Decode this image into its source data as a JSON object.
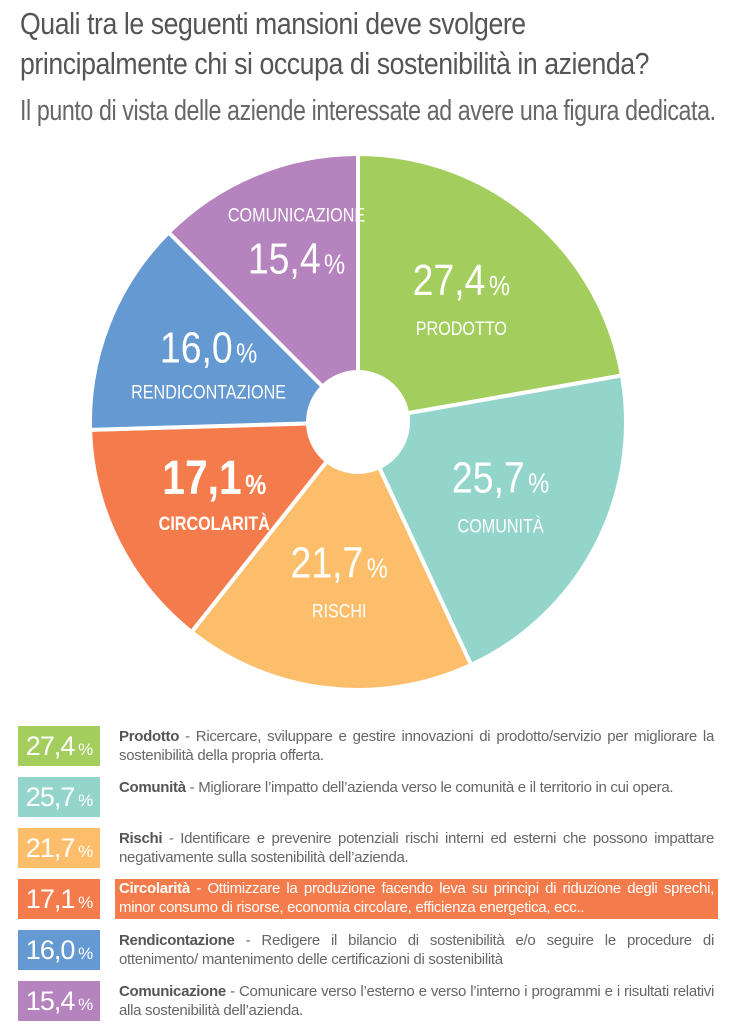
{
  "title_line1": "Quali tra le seguenti mansioni deve svolgere",
  "title_line2": "principalmente chi si occupa di sostenibilità in azienda?",
  "subtitle": "Il punto di vista delle aziende interessate ad avere una figura dedicata.",
  "chart_data": {
    "type": "pie",
    "title": "Quali tra le seguenti mansioni deve svolgere principalmente chi si occupa di sostenibilità in azienda?",
    "unit": "%",
    "slices": [
      {
        "label": "PRODOTTO",
        "value": 27.4,
        "display": "27,4",
        "color": "#A3CE5E"
      },
      {
        "label": "COMUNITÀ",
        "value": 25.7,
        "display": "25,7",
        "color": "#94D5CB"
      },
      {
        "label": "RISCHI",
        "value": 21.7,
        "display": "21,7",
        "color": "#FDBE6B"
      },
      {
        "label": "CIRCOLARITÀ",
        "value": 17.1,
        "display": "17,1",
        "color": "#F47C4C",
        "highlight": true
      },
      {
        "label": "RENDICONTAZIONE",
        "value": 16.0,
        "display": "16,0",
        "color": "#6499D2"
      },
      {
        "label": "COMUNICAZIONE",
        "value": 15.4,
        "display": "15,4",
        "color": "#B583BD"
      }
    ]
  },
  "legend": [
    {
      "value": "27,4",
      "name": "Prodotto",
      "text": " - Ricercare, sviluppare e gestire innovazioni di prodotto/servizio per migliorare la sostenibilità della propria offerta."
    },
    {
      "value": "25,7",
      "name": "Comunità",
      "text": " - Migliorare l’impatto dell’azienda verso le comunità e il territorio in cui opera."
    },
    {
      "value": "21,7",
      "name": "Rischi",
      "text": " - Identificare e prevenire potenziali rischi interni ed esterni che possono impattare negativamente sulla sostenibilità dell’azienda."
    },
    {
      "value": "17,1",
      "name": "Circolarità",
      "text": " - Ottimizzare la produzione facendo leva su principi di riduzione degli sprechi, minor consumo di risorse, economia circolare, efficienza energetica, ecc.."
    },
    {
      "value": "16,0",
      "name": "Rendicontazione",
      "text": " - Redigere il bilancio di sostenibilità e/o seguire le procedure di ottenimento/ mantenimento delle certificazioni di sostenibilità"
    },
    {
      "value": "15,4",
      "name": "Comunicazione",
      "text": " - Comunicare verso l’esterno e verso l’interno i programmi e i risultati relativi alla sostenibilità dell’azienda."
    }
  ],
  "percent_sign": "%"
}
